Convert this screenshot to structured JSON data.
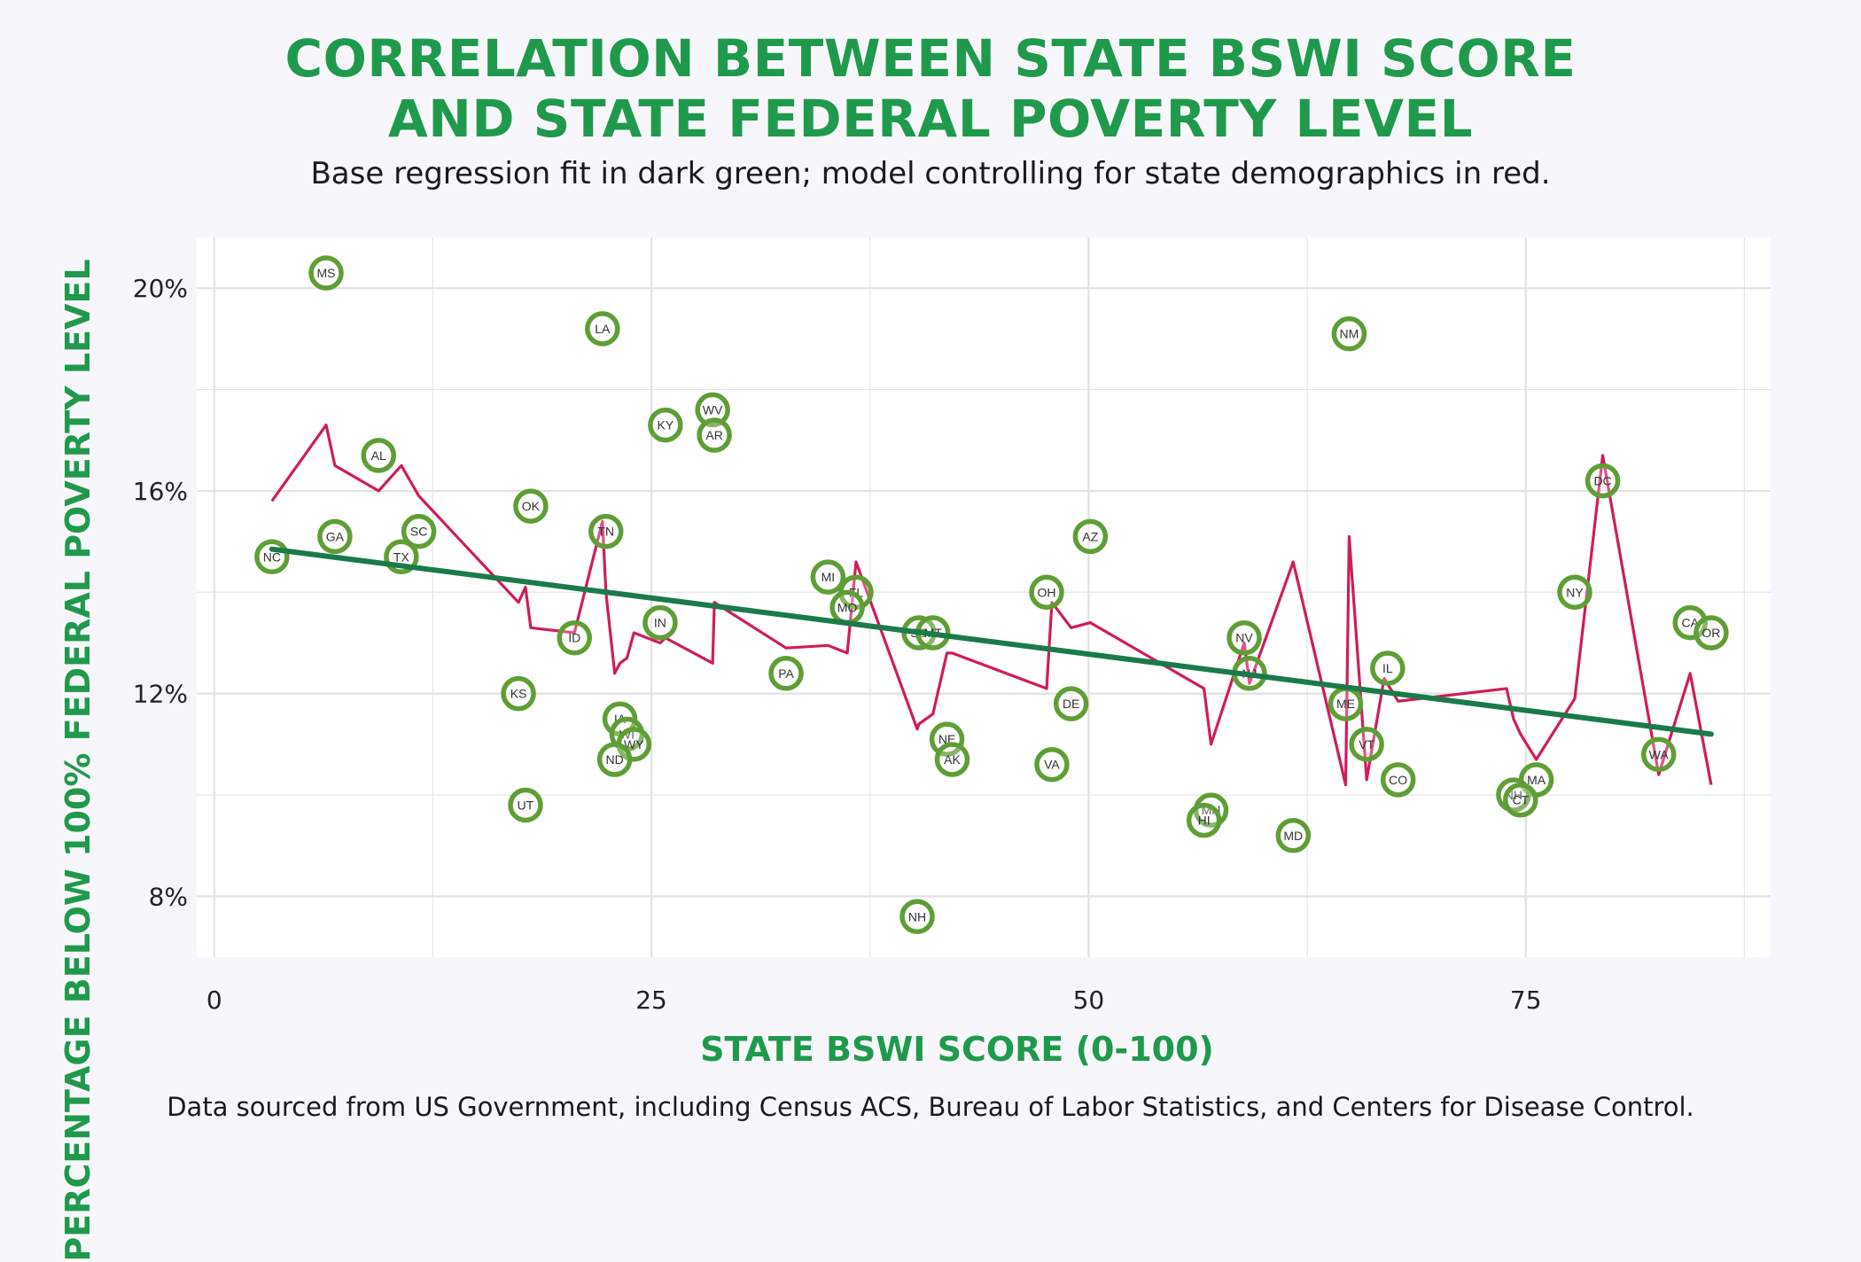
{
  "title_line1": "CORRELATION BETWEEN STATE BSWI SCORE",
  "title_line2": "AND STATE FEDERAL POVERTY LEVEL",
  "subtitle": "Base regression fit in dark green; model controlling for state demographics in red.",
  "footnote": "Data sourced from US Government, including Census ACS, Bureau of Labor Statistics, and Centers for Disease Control.",
  "colors": {
    "title": "#1f9a4c",
    "base_fit": "#1a7a4a",
    "controlled_fit": "#d01c5c",
    "point_stroke": "#5f9e35",
    "grid": "#e6e6e6",
    "panel": "#ffffff"
  },
  "chart_data": {
    "type": "scatter",
    "title": "CORRELATION BETWEEN STATE BSWI SCORE AND STATE FEDERAL POVERTY LEVEL",
    "xlabel": "STATE BSWI SCORE (0-100)",
    "ylabel": "PERCENTAGE BELOW 100% FEDERAL POVERTY LEVEL",
    "xlim": [
      -1,
      89
    ],
    "ylim": [
      6.8,
      21.0
    ],
    "x_ticks": [
      0,
      25,
      50,
      75
    ],
    "x_tick_labels": [
      "0",
      "25",
      "50",
      "75"
    ],
    "y_ticks": [
      8,
      12,
      16,
      20
    ],
    "y_tick_labels": [
      "8%",
      "12%",
      "16%",
      "20%"
    ],
    "grid": true,
    "points": [
      {
        "label": "MS",
        "x": 6.4,
        "y": 20.3
      },
      {
        "label": "LA",
        "x": 22.2,
        "y": 19.2
      },
      {
        "label": "NM",
        "x": 64.9,
        "y": 19.1
      },
      {
        "label": "KY",
        "x": 25.8,
        "y": 17.3
      },
      {
        "label": "WV",
        "x": 28.5,
        "y": 17.6
      },
      {
        "label": "AR",
        "x": 28.6,
        "y": 17.1
      },
      {
        "label": "AL",
        "x": 9.4,
        "y": 16.7
      },
      {
        "label": "DC",
        "x": 79.4,
        "y": 16.2
      },
      {
        "label": "OK",
        "x": 18.1,
        "y": 15.7
      },
      {
        "label": "TN",
        "x": 22.4,
        "y": 15.2
      },
      {
        "label": "SC",
        "x": 11.7,
        "y": 15.2
      },
      {
        "label": "AZ",
        "x": 50.1,
        "y": 15.1
      },
      {
        "label": "GA",
        "x": 6.9,
        "y": 15.1
      },
      {
        "label": "NC",
        "x": 3.3,
        "y": 14.7
      },
      {
        "label": "TX",
        "x": 10.7,
        "y": 14.7
      },
      {
        "label": "MI",
        "x": 35.1,
        "y": 14.3
      },
      {
        "label": "FL",
        "x": 36.7,
        "y": 14.0
      },
      {
        "label": "OH",
        "x": 47.6,
        "y": 14.0
      },
      {
        "label": "NY",
        "x": 77.8,
        "y": 14.0
      },
      {
        "label": "MO",
        "x": 36.2,
        "y": 13.7
      },
      {
        "label": "IN",
        "x": 25.5,
        "y": 13.4
      },
      {
        "label": "CA",
        "x": 84.4,
        "y": 13.4
      },
      {
        "label": "OR",
        "x": 85.6,
        "y": 13.2
      },
      {
        "label": "SD",
        "x": 40.3,
        "y": 13.2
      },
      {
        "label": "MT",
        "x": 41.1,
        "y": 13.2
      },
      {
        "label": "ID",
        "x": 20.6,
        "y": 13.1
      },
      {
        "label": "NV",
        "x": 58.9,
        "y": 13.1
      },
      {
        "label": "IL",
        "x": 67.1,
        "y": 12.5
      },
      {
        "label": "PA",
        "x": 32.7,
        "y": 12.4
      },
      {
        "label": "NJ",
        "x": 59.2,
        "y": 12.4
      },
      {
        "label": "KS",
        "x": 17.4,
        "y": 12.0
      },
      {
        "label": "DE",
        "x": 49.0,
        "y": 11.8
      },
      {
        "label": "ME",
        "x": 64.7,
        "y": 11.8
      },
      {
        "label": "IA",
        "x": 23.2,
        "y": 11.5
      },
      {
        "label": "WI",
        "x": 23.6,
        "y": 11.2
      },
      {
        "label": "NE",
        "x": 41.9,
        "y": 11.1
      },
      {
        "label": "WY",
        "x": 24.0,
        "y": 11.0
      },
      {
        "label": "VT",
        "x": 65.9,
        "y": 11.0
      },
      {
        "label": "ND",
        "x": 22.9,
        "y": 10.7
      },
      {
        "label": "AK",
        "x": 42.2,
        "y": 10.7
      },
      {
        "label": "WA",
        "x": 82.6,
        "y": 10.8
      },
      {
        "label": "VA",
        "x": 47.9,
        "y": 10.6
      },
      {
        "label": "CO",
        "x": 67.7,
        "y": 10.3
      },
      {
        "label": "MA",
        "x": 75.6,
        "y": 10.3
      },
      {
        "label": "NH",
        "x": 74.3,
        "y": 10.0
      },
      {
        "label": "CT",
        "x": 74.7,
        "y": 9.9
      },
      {
        "label": "UT",
        "x": 17.8,
        "y": 9.8
      },
      {
        "label": "MN",
        "x": 57.0,
        "y": 9.7
      },
      {
        "label": "HI",
        "x": 56.6,
        "y": 9.5
      },
      {
        "label": "MD",
        "x": 61.7,
        "y": 9.2
      },
      {
        "label": "NH",
        "x": 40.2,
        "y": 7.6
      }
    ],
    "series": [
      {
        "name": "Base regression fit",
        "type": "line",
        "x": [
          3.3,
          85.6
        ],
        "y": [
          14.85,
          11.2
        ]
      },
      {
        "name": "Model controlling for state demographics",
        "type": "line",
        "x": [
          3.3,
          6.4,
          6.9,
          9.4,
          10.7,
          11.7,
          17.4,
          17.8,
          18.1,
          20.6,
          22.2,
          22.4,
          22.9,
          23.2,
          23.6,
          24.0,
          25.5,
          25.8,
          28.5,
          28.6,
          32.7,
          35.1,
          36.2,
          36.7,
          40.2,
          40.3,
          41.1,
          41.9,
          42.2,
          47.6,
          47.9,
          49.0,
          50.1,
          56.6,
          57.0,
          58.9,
          59.2,
          61.7,
          64.7,
          64.9,
          65.9,
          66.9,
          67.7,
          73.9,
          74.3,
          74.7,
          75.6,
          77.8,
          79.4,
          82.6,
          84.4,
          85.6
        ],
        "y": [
          15.8,
          17.3,
          16.5,
          16.0,
          16.5,
          15.9,
          13.8,
          14.1,
          13.3,
          13.2,
          15.4,
          14.0,
          12.4,
          12.6,
          12.7,
          13.2,
          13.0,
          13.1,
          12.6,
          13.8,
          12.9,
          12.95,
          12.8,
          14.6,
          11.3,
          11.4,
          11.6,
          12.8,
          12.8,
          12.1,
          13.8,
          13.3,
          13.4,
          12.1,
          11.0,
          13.0,
          12.2,
          14.6,
          10.2,
          15.1,
          10.3,
          12.3,
          11.85,
          12.1,
          11.5,
          11.2,
          10.7,
          11.9,
          16.7,
          10.4,
          12.4,
          10.2
        ]
      }
    ]
  }
}
